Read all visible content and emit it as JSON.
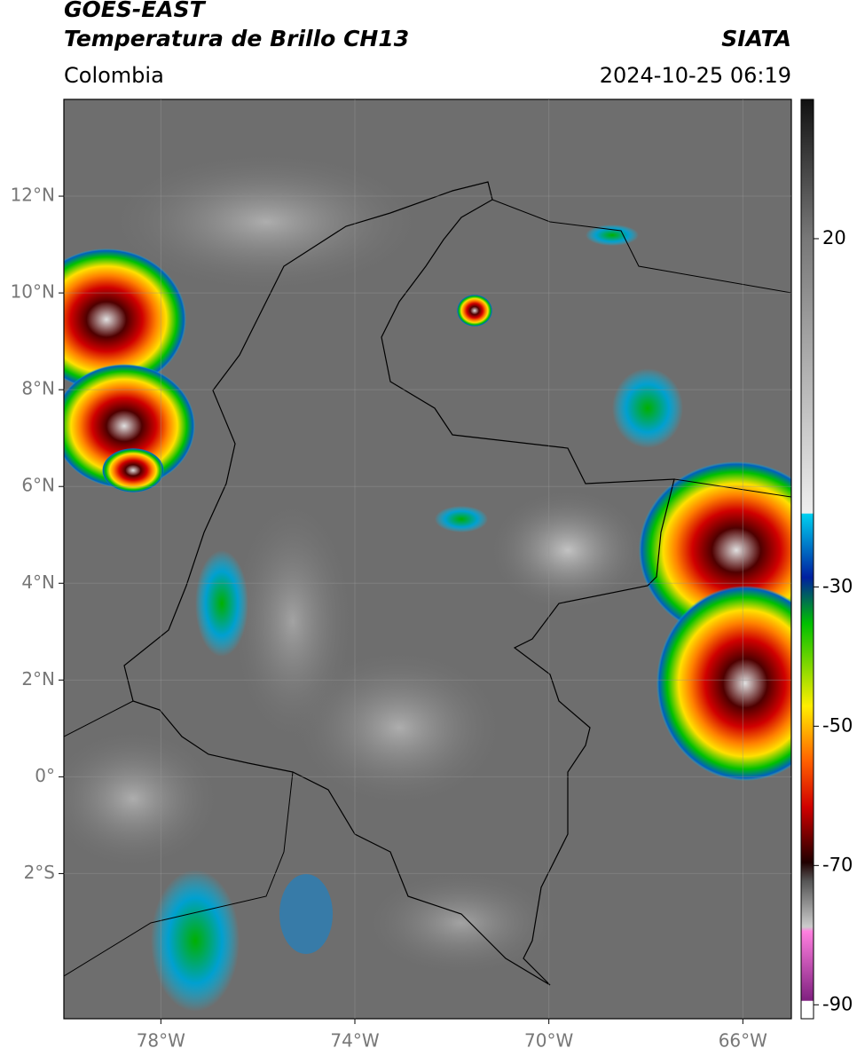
{
  "header": {
    "satellite": "GOES-EAST",
    "product": "Temperatura de Brillo CH13",
    "source": "SIATA",
    "region": "Colombia",
    "datetime": "2024-10-25 06:19"
  },
  "map": {
    "xlim": [
      -80,
      -65
    ],
    "ylim": [
      -5,
      14
    ],
    "xticks": [
      {
        "value": -78,
        "label": "78°W"
      },
      {
        "value": -74,
        "label": "74°W"
      },
      {
        "value": -70,
        "label": "70°W"
      },
      {
        "value": -66,
        "label": "66°W"
      }
    ],
    "yticks": [
      {
        "value": 12,
        "label": "12°N"
      },
      {
        "value": 10,
        "label": "10°N"
      },
      {
        "value": 8,
        "label": "8°N"
      },
      {
        "value": 6,
        "label": "6°N"
      },
      {
        "value": 4,
        "label": "4°N"
      },
      {
        "value": 2,
        "label": "2°N"
      },
      {
        "value": 0,
        "label": "0°"
      },
      {
        "value": -2,
        "label": "2°S"
      }
    ]
  },
  "colorbar": {
    "lim": [
      -92,
      40
    ],
    "ticks": [
      20,
      -30,
      -50,
      -70,
      -90
    ]
  }
}
